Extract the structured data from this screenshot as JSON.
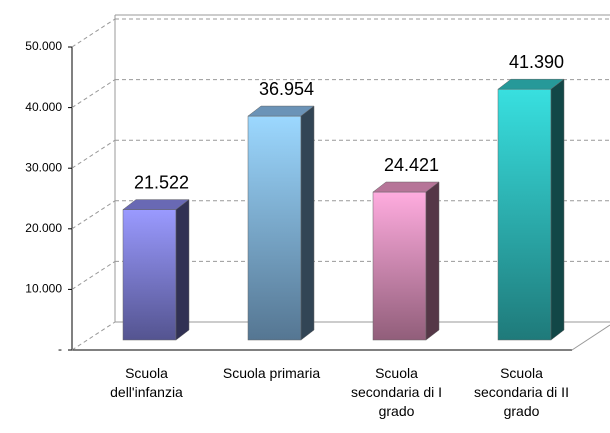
{
  "chart_data": {
    "type": "bar3d",
    "categories": [
      "Scuola dell'infanzia",
      "Scuola primaria",
      "Scuola secondaria di I grado",
      "Scuola secondaria di II grado"
    ],
    "values": [
      21522,
      36954,
      24421,
      41390
    ],
    "value_labels": [
      "21.522",
      "36.954",
      "24.421",
      "41.390"
    ],
    "colors": [
      "#8c8cf0",
      "#8ec4f4",
      "#f29ccb",
      "#33cccc"
    ],
    "ylim": [
      0,
      50000
    ],
    "yticks": [
      {
        "value": 0,
        "label": "-"
      },
      {
        "value": 10000,
        "label": "10.000"
      },
      {
        "value": 20000,
        "label": "20.000"
      },
      {
        "value": 30000,
        "label": "30.000"
      },
      {
        "value": 40000,
        "label": "40.000"
      },
      {
        "value": 50000,
        "label": "50.000"
      }
    ],
    "grid": true
  }
}
